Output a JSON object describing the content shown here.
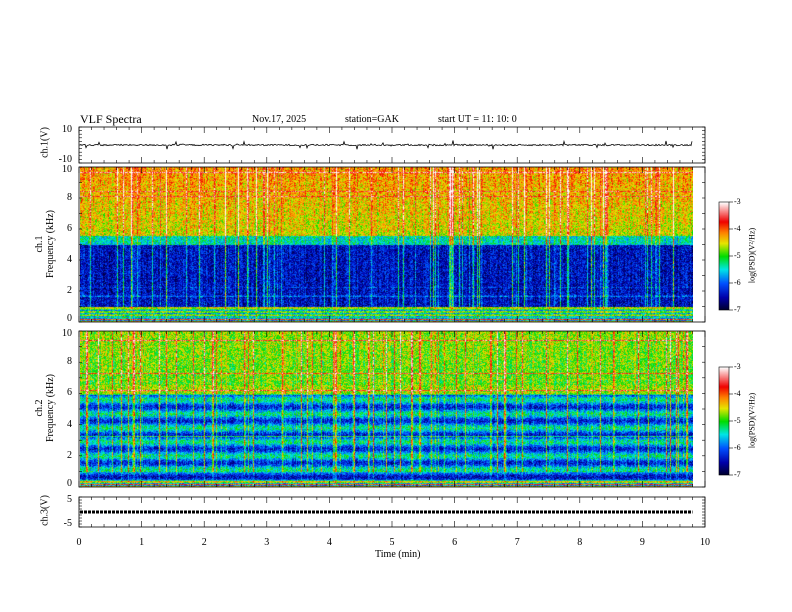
{
  "header": {
    "title": "VLF  Spectra",
    "date": "Nov.17, 2025",
    "station": "station=GAK",
    "start": "start  UT  =   11: 10: 0"
  },
  "chart_data": {
    "type": "heatmap",
    "xlabel": "Time  (min)",
    "xlim": [
      0,
      10
    ],
    "x_ticks": [
      "0",
      "1",
      "2",
      "3",
      "4",
      "5",
      "6",
      "7",
      "8",
      "9",
      "10"
    ],
    "data_end_min": 9.8,
    "panels": [
      {
        "name": "ch1-waveform",
        "ylabel": "ch.1(V)",
        "ylim": [
          -10,
          10
        ],
        "y_ticks": [
          "10",
          "-10"
        ]
      },
      {
        "name": "ch1-spectrogram",
        "ylabel": "ch.1\nFrequency  (kHz)",
        "ylabel_a": "ch.1",
        "ylabel_b": "Frequency  (kHz)",
        "ylim": [
          0,
          10
        ],
        "y_ticks": [
          "0",
          "2",
          "4",
          "6",
          "8",
          "10"
        ]
      },
      {
        "name": "ch2-spectrogram",
        "ylabel_a": "ch.2",
        "ylabel_b": "Frequency  (kHz)",
        "ylim": [
          0,
          10
        ],
        "y_ticks": [
          "0",
          "2",
          "4",
          "6",
          "8",
          "10"
        ]
      },
      {
        "name": "ch3-waveform",
        "ylabel": "ch.3(V)",
        "ylim": [
          -5,
          5
        ],
        "y_ticks": [
          "5",
          "-5"
        ],
        "level": 0
      }
    ],
    "colorbar": {
      "label": "log(PSD)(V²/Hz)",
      "range": [
        -7,
        -3
      ],
      "ticks": [
        "-3",
        "-4",
        "-5",
        "-6",
        "-7"
      ]
    }
  }
}
